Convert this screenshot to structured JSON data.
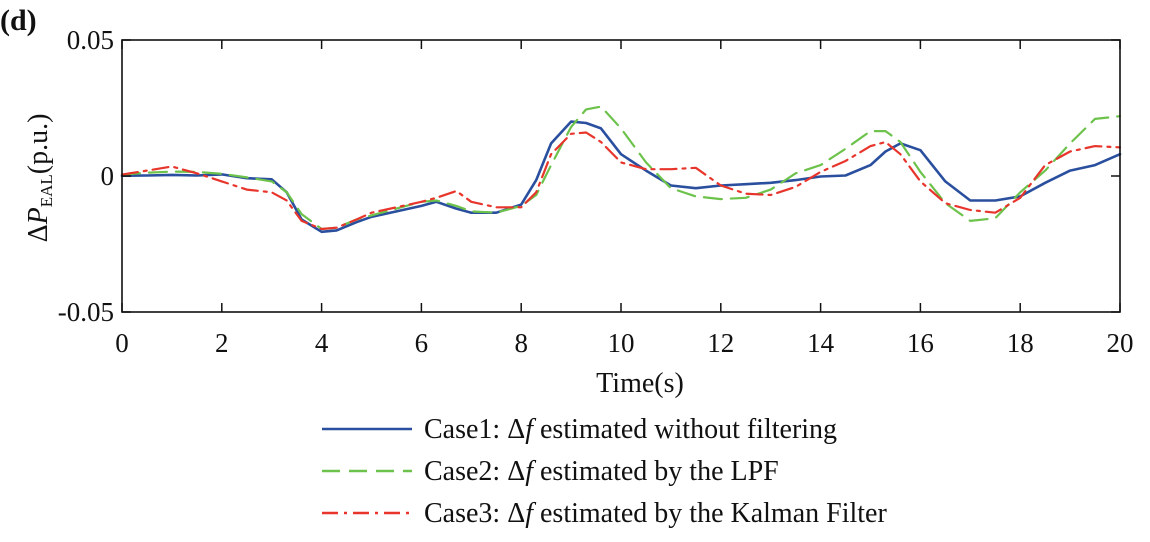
{
  "chart_data": {
    "type": "line",
    "panel_label": "(d)",
    "xlabel": "Time(s)",
    "ylabel": {
      "prefix": "Δ",
      "symbol": "P",
      "subscript": "EAL",
      "suffix": "(p.u.)"
    },
    "xlim": [
      0,
      20
    ],
    "ylim": [
      -0.05,
      0.05
    ],
    "x_ticks": [
      0,
      2,
      4,
      6,
      8,
      10,
      12,
      14,
      16,
      18,
      20
    ],
    "x_tick_labels": [
      "0",
      "2",
      "4",
      "6",
      "8",
      "10",
      "12",
      "14",
      "16",
      "18",
      "20"
    ],
    "y_ticks": [
      -0.05,
      0,
      0.05
    ],
    "y_tick_labels": [
      "-0.05",
      "0",
      "0.05"
    ],
    "grid": false,
    "legend_position": "bottom",
    "series": [
      {
        "name": "Case1",
        "legend": {
          "lead": "Case1: Δ",
          "var": "f",
          "rest": " estimated without filtering"
        },
        "color": "#2a4f9e",
        "dash": "",
        "x": [
          0,
          0.5,
          1,
          1.5,
          2,
          2.5,
          3,
          3.3,
          3.6,
          4,
          4.3,
          4.7,
          5,
          5.5,
          6,
          6.3,
          6.7,
          7,
          7.5,
          8,
          8.3,
          8.6,
          9,
          9.3,
          9.6,
          10,
          10.5,
          11,
          11.5,
          12,
          12.5,
          13,
          13.5,
          14,
          14.5,
          15,
          15.3,
          15.6,
          16,
          16.5,
          17,
          17.5,
          18,
          18.5,
          19,
          19.5,
          20
        ],
        "y": [
          0.0001,
          0.0002,
          0.0004,
          0.0002,
          0.0006,
          -0.0008,
          -0.0012,
          -0.006,
          -0.016,
          -0.0205,
          -0.02,
          -0.017,
          -0.015,
          -0.013,
          -0.011,
          -0.0095,
          -0.012,
          -0.0135,
          -0.0135,
          -0.0105,
          -0.0015,
          0.012,
          0.02,
          0.0195,
          0.0175,
          0.008,
          0.002,
          -0.0035,
          -0.0045,
          -0.0035,
          -0.003,
          -0.0025,
          -0.0015,
          -0.0002,
          0.0002,
          0.004,
          0.009,
          0.012,
          0.0095,
          -0.002,
          -0.009,
          -0.009,
          -0.0075,
          -0.0025,
          0.002,
          0.004,
          0.008
        ]
      },
      {
        "name": "Case2",
        "legend": {
          "lead": "Case2: Δ",
          "var": "f",
          "rest": " estimated by the LPF"
        },
        "color": "#6cc24a",
        "dash": "18,9",
        "x": [
          0,
          0.5,
          1,
          1.5,
          2,
          2.5,
          3,
          3.3,
          3.6,
          4,
          4.3,
          4.7,
          5,
          5.5,
          6,
          6.3,
          6.7,
          7,
          7.5,
          8,
          8.3,
          8.6,
          9,
          9.3,
          9.6,
          10,
          10.5,
          11,
          11.5,
          12,
          12.5,
          13,
          13.5,
          14,
          14.5,
          15,
          15.3,
          15.6,
          16,
          16.5,
          17,
          17.5,
          18,
          18.5,
          19,
          19.5,
          20
        ],
        "y": [
          0.0005,
          0.0012,
          0.0016,
          0.0015,
          0.0008,
          -0.0005,
          -0.002,
          -0.006,
          -0.014,
          -0.0195,
          -0.019,
          -0.016,
          -0.0145,
          -0.012,
          -0.0095,
          -0.009,
          -0.011,
          -0.013,
          -0.0135,
          -0.011,
          -0.007,
          0.004,
          0.018,
          0.0245,
          0.0255,
          0.0175,
          0.005,
          -0.0045,
          -0.0075,
          -0.0085,
          -0.008,
          -0.005,
          0.001,
          0.004,
          0.01,
          0.0165,
          0.0165,
          0.0125,
          0.0015,
          -0.01,
          -0.0165,
          -0.0155,
          -0.006,
          0.002,
          0.012,
          0.021,
          0.022
        ]
      },
      {
        "name": "Case3",
        "legend": {
          "lead": "Case3: Δ",
          "var": "f",
          "rest": " estimated by the Kalman Filter"
        },
        "color": "#e8352c",
        "dash": "16,6,3,6",
        "x": [
          0,
          0.5,
          1,
          1.5,
          2,
          2.5,
          3,
          3.3,
          3.6,
          4,
          4.3,
          4.7,
          5,
          5.5,
          6,
          6.3,
          6.7,
          7,
          7.5,
          8,
          8.3,
          8.6,
          9,
          9.3,
          9.6,
          10,
          10.5,
          11,
          11.5,
          12,
          12.5,
          13,
          13.5,
          14,
          14.5,
          15,
          15.3,
          15.6,
          16,
          16.5,
          17,
          17.5,
          18,
          18.5,
          19,
          19.5,
          20
        ],
        "y": [
          0.0005,
          0.002,
          0.0035,
          0.001,
          -0.002,
          -0.005,
          -0.006,
          -0.009,
          -0.0165,
          -0.0195,
          -0.019,
          -0.016,
          -0.0135,
          -0.0115,
          -0.0095,
          -0.008,
          -0.0055,
          -0.0095,
          -0.0115,
          -0.0115,
          -0.006,
          0.008,
          0.0155,
          0.016,
          0.0125,
          0.005,
          0.0025,
          0.0025,
          0.003,
          -0.0035,
          -0.0065,
          -0.007,
          -0.004,
          0.0015,
          0.0055,
          0.011,
          0.0125,
          0.008,
          -0.002,
          -0.01,
          -0.0125,
          -0.0135,
          -0.008,
          0.004,
          0.009,
          0.011,
          0.0105
        ]
      }
    ]
  }
}
